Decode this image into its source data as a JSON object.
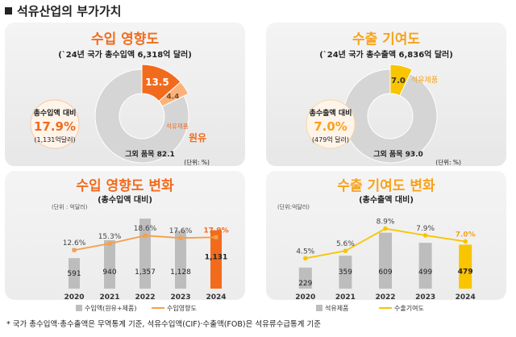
{
  "page_title": "석유산업의 부가가치",
  "footnote": "* 국가 총수입액·총수출액은 무역통계 기준, 석유수입액(CIF)·수출액(FOB)은 석유류수급통계 기준",
  "colors": {
    "orange": "#f26b1d",
    "dark_orange": "#c8420e",
    "yellow": "#f9c400",
    "gray": "#cfcfcf",
    "bar_gray": "#b9b9b9"
  },
  "chart_data": [
    {
      "type": "pie",
      "title": "수입 영향도",
      "subtitle": "(`24년 국가 총수입액 6,318억 달러)",
      "unit_label": "(단위: %)",
      "center_label": "총수입액 대비",
      "center_value": "17.9%",
      "center_sub": "(1,131억달러)",
      "slices": [
        {
          "name": "원유",
          "value": 13.5,
          "label": "13.5",
          "color": "#f26b1d"
        },
        {
          "name": "석유제품",
          "value": 4.4,
          "label": "4.4",
          "color": "#fbb27a"
        },
        {
          "name": "그외 품목",
          "value": 82.1,
          "label": "그외 품목 82.1",
          "color": "#d5d5d5"
        }
      ]
    },
    {
      "type": "pie",
      "title": "수출 기여도",
      "subtitle": "(`24년 국가 총수출액 6,836억 달러)",
      "unit_label": "(단위: %)",
      "center_label": "총수출액 대비",
      "center_value": "7.0%",
      "center_sub": "(479억 달러)",
      "slices": [
        {
          "name": "석유제품",
          "value": 7.0,
          "label": "7.0",
          "color": "#f9c400"
        },
        {
          "name": "그외 품목",
          "value": 93.0,
          "label": "그외 품목 93.0",
          "color": "#d5d5d5"
        }
      ]
    },
    {
      "type": "bar",
      "title": "수입 영향도 변화",
      "subtitle": "(총수입액 대비)",
      "unit_label": "(단위 : 억달러)",
      "categories": [
        "2020",
        "2021",
        "2022",
        "2023",
        "2024"
      ],
      "series": [
        {
          "name": "수입액(원유+제품)",
          "type": "bar",
          "values": [
            591,
            940,
            1357,
            1128,
            1131
          ],
          "labels": [
            "591",
            "940",
            "1,357",
            "1,128",
            "1,131"
          ]
        },
        {
          "name": "수입영향도",
          "type": "line",
          "values": [
            12.6,
            15.3,
            18.6,
            17.6,
            17.9
          ],
          "labels": [
            "12.6%",
            "15.3%",
            "18.6%",
            "17.6%",
            "17.9%"
          ]
        }
      ],
      "ylim_bar": [
        0,
        1500
      ],
      "ylim_line": [
        0,
        24
      ]
    },
    {
      "type": "bar",
      "title": "수출 기여도 변화",
      "subtitle": "(총수출액 대비)",
      "unit_label": "(단위:억달러)",
      "categories": [
        "2020",
        "2021",
        "2022",
        "2023",
        "2024"
      ],
      "series": [
        {
          "name": "석유제품",
          "type": "bar",
          "values": [
            229,
            359,
            609,
            499,
            479
          ],
          "labels": [
            "229",
            "359",
            "609",
            "499",
            "479"
          ]
        },
        {
          "name": "수출기여도",
          "type": "line",
          "values": [
            4.5,
            5.6,
            8.9,
            7.9,
            7.0
          ],
          "labels": [
            "4.5%",
            "5.6%",
            "8.9%",
            "7.9%",
            "7.0%"
          ]
        }
      ],
      "ylim_bar": [
        0,
        720
      ],
      "ylim_line": [
        0,
        11
      ]
    }
  ]
}
